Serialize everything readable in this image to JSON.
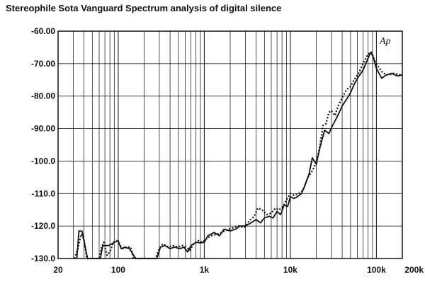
{
  "title": "Stereophile  Sota Vanguard Spectrum analysis of digital silence",
  "chart_data": {
    "type": "line",
    "title": "Stereophile  Sota Vanguard Spectrum analysis of digital silence",
    "xlabel": "",
    "ylabel": "",
    "xscale": "log",
    "xlim": [
      20,
      200000
    ],
    "ylim": [
      -130,
      -60
    ],
    "grid": true,
    "legend": "none",
    "watermark": "Ap",
    "x_tick_labels": [
      {
        "value": 20,
        "label": "20"
      },
      {
        "value": 100,
        "label": "100"
      },
      {
        "value": 1000,
        "label": "1k"
      },
      {
        "value": 10000,
        "label": "10k"
      },
      {
        "value": 100000,
        "label": "100k"
      },
      {
        "value": 200000,
        "label": "200k"
      }
    ],
    "y_tick_labels": [
      {
        "value": -60,
        "label": "-60.00"
      },
      {
        "value": -70,
        "label": "-70.00"
      },
      {
        "value": -80,
        "label": "-80.00"
      },
      {
        "value": -90,
        "label": "-90.00"
      },
      {
        "value": -100,
        "label": "-100.0"
      },
      {
        "value": -110,
        "label": "-110.0"
      },
      {
        "value": -120,
        "label": "-120.0"
      },
      {
        "value": -130,
        "label": "-130.0"
      }
    ],
    "series": [
      {
        "style": "solid",
        "color": "#111111",
        "points": [
          [
            33,
            -130
          ],
          [
            35,
            -121.5
          ],
          [
            38,
            -121.6
          ],
          [
            41,
            -126
          ],
          [
            44,
            -130
          ],
          [
            50,
            -130
          ],
          [
            62,
            -130
          ],
          [
            66,
            -126
          ],
          [
            78,
            -126
          ],
          [
            90,
            -125
          ],
          [
            100,
            -124.5
          ],
          [
            108,
            -127
          ],
          [
            120,
            -126.5
          ],
          [
            135,
            -127
          ],
          [
            160,
            -130
          ],
          [
            280,
            -130
          ],
          [
            310,
            -126.5
          ],
          [
            350,
            -126
          ],
          [
            400,
            -127
          ],
          [
            450,
            -126.5
          ],
          [
            520,
            -127
          ],
          [
            580,
            -126.5
          ],
          [
            640,
            -128
          ],
          [
            700,
            -126
          ],
          [
            800,
            -125
          ],
          [
            900,
            -125.2
          ],
          [
            1000,
            -125
          ],
          [
            1100,
            -123
          ],
          [
            1300,
            -122
          ],
          [
            1500,
            -123
          ],
          [
            1700,
            -121
          ],
          [
            2000,
            -121.5
          ],
          [
            2300,
            -121
          ],
          [
            2600,
            -120
          ],
          [
            3000,
            -120
          ],
          [
            3500,
            -119
          ],
          [
            4000,
            -118
          ],
          [
            4500,
            -119
          ],
          [
            5000,
            -117.5
          ],
          [
            5700,
            -117
          ],
          [
            6300,
            -117.5
          ],
          [
            7000,
            -115.5
          ],
          [
            7700,
            -116.5
          ],
          [
            8500,
            -113.5
          ],
          [
            9300,
            -114
          ],
          [
            10000,
            -111
          ],
          [
            11000,
            -111.5
          ],
          [
            12000,
            -111
          ],
          [
            13500,
            -110
          ],
          [
            15000,
            -107
          ],
          [
            16500,
            -104
          ],
          [
            18000,
            -99
          ],
          [
            20000,
            -101
          ],
          [
            22000,
            -96
          ],
          [
            25000,
            -90.5
          ],
          [
            28000,
            -91.5
          ],
          [
            31000,
            -89
          ],
          [
            34000,
            -87
          ],
          [
            37000,
            -85
          ],
          [
            40000,
            -83
          ],
          [
            45000,
            -81
          ],
          [
            50000,
            -79
          ],
          [
            56000,
            -76
          ],
          [
            62000,
            -74
          ],
          [
            70000,
            -72
          ],
          [
            78000,
            -69
          ],
          [
            86000,
            -66.5
          ],
          [
            92000,
            -68
          ],
          [
            100000,
            -71.5
          ],
          [
            115000,
            -74.5
          ],
          [
            130000,
            -73.5
          ],
          [
            150000,
            -73
          ],
          [
            175000,
            -73.8
          ],
          [
            200000,
            -73.5
          ]
        ]
      },
      {
        "style": "dotted",
        "color": "#111111",
        "points": [
          [
            31,
            -130
          ],
          [
            34,
            -127
          ],
          [
            37,
            -122.5
          ],
          [
            40,
            -124
          ],
          [
            43,
            -130
          ],
          [
            55,
            -130
          ],
          [
            60,
            -130
          ],
          [
            64,
            -126.5
          ],
          [
            68,
            -125
          ],
          [
            74,
            -129
          ],
          [
            80,
            -128
          ],
          [
            88,
            -125
          ],
          [
            96,
            -124.5
          ],
          [
            105,
            -126
          ],
          [
            115,
            -127
          ],
          [
            128,
            -126.5
          ],
          [
            140,
            -126.5
          ],
          [
            150,
            -130
          ],
          [
            270,
            -130
          ],
          [
            300,
            -127
          ],
          [
            330,
            -125.5
          ],
          [
            380,
            -126.5
          ],
          [
            430,
            -126
          ],
          [
            500,
            -126.5
          ],
          [
            560,
            -126
          ],
          [
            620,
            -126.5
          ],
          [
            680,
            -127.5
          ],
          [
            750,
            -125.5
          ],
          [
            850,
            -124.5
          ],
          [
            950,
            -125
          ],
          [
            1050,
            -124
          ],
          [
            1200,
            -123
          ],
          [
            1400,
            -122.5
          ],
          [
            1600,
            -122
          ],
          [
            1900,
            -121
          ],
          [
            2200,
            -120.5
          ],
          [
            2500,
            -120
          ],
          [
            2900,
            -120.5
          ],
          [
            3300,
            -118.5
          ],
          [
            3800,
            -117
          ],
          [
            4200,
            -114.5
          ],
          [
            4700,
            -115
          ],
          [
            5300,
            -116.5
          ],
          [
            6000,
            -116
          ],
          [
            6700,
            -114.5
          ],
          [
            7400,
            -115
          ],
          [
            8200,
            -114
          ],
          [
            9000,
            -112
          ],
          [
            10000,
            -110
          ],
          [
            11000,
            -110.5
          ],
          [
            12500,
            -110
          ],
          [
            14000,
            -109
          ],
          [
            16000,
            -105
          ],
          [
            18000,
            -103
          ],
          [
            20000,
            -100.5
          ],
          [
            22000,
            -95.5
          ],
          [
            24000,
            -89
          ],
          [
            26000,
            -88.5
          ],
          [
            28000,
            -85
          ],
          [
            30000,
            -84.5
          ],
          [
            33000,
            -86
          ],
          [
            36000,
            -83
          ],
          [
            40000,
            -80.5
          ],
          [
            45000,
            -78
          ],
          [
            50000,
            -77
          ],
          [
            55000,
            -75
          ],
          [
            62000,
            -73
          ],
          [
            70000,
            -70
          ],
          [
            80000,
            -67
          ],
          [
            88000,
            -66.5
          ],
          [
            95000,
            -69
          ],
          [
            105000,
            -71
          ],
          [
            120000,
            -73
          ],
          [
            140000,
            -73.5
          ],
          [
            160000,
            -73
          ],
          [
            180000,
            -73.3
          ],
          [
            200000,
            -73.5
          ]
        ]
      }
    ]
  }
}
